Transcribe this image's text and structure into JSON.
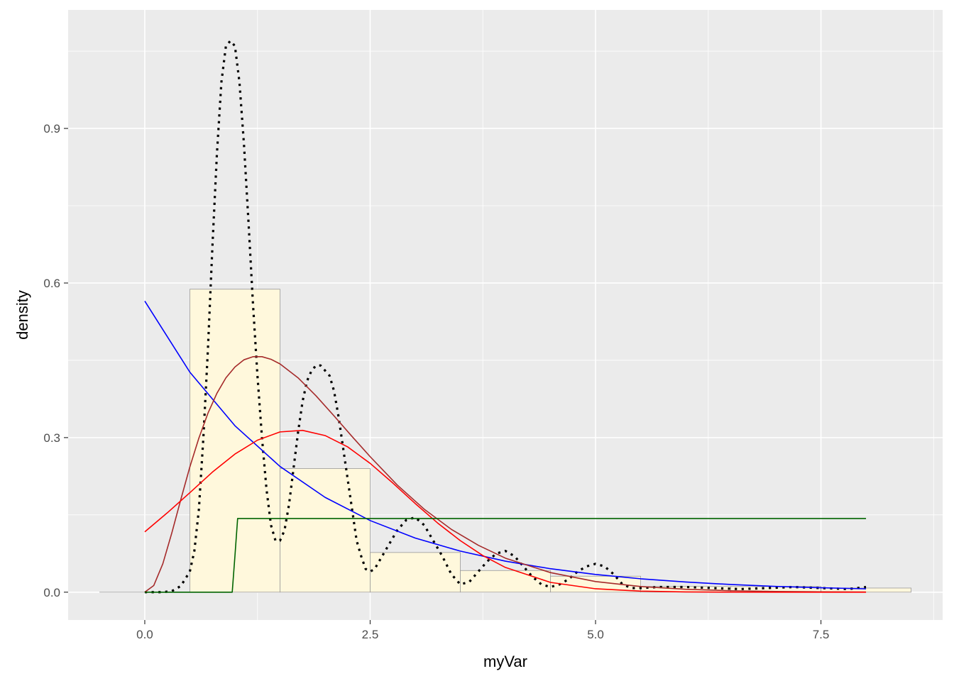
{
  "chart_data": {
    "type": "histogram-density",
    "xlabel": "myVar",
    "ylabel": "density",
    "xlim": [
      -0.85,
      8.85
    ],
    "ylim": [
      -0.054,
      1.13
    ],
    "x_ticks": [
      0.0,
      2.5,
      5.0,
      7.5
    ],
    "x_tick_labels": [
      "0.0",
      "2.5",
      "5.0",
      "7.5"
    ],
    "y_ticks": [
      0.0,
      0.3,
      0.6,
      0.9
    ],
    "y_tick_labels": [
      "0.0",
      "0.3",
      "0.6",
      "0.9"
    ],
    "grid": true,
    "panel_background": "#ebebeb",
    "histogram": {
      "fill": "#fff8dc",
      "stroke": "#999999",
      "bins": [
        {
          "x0": -0.5,
          "x1": 0.5,
          "density": 0.0
        },
        {
          "x0": 0.5,
          "x1": 1.5,
          "density": 0.588
        },
        {
          "x0": 1.5,
          "x1": 2.5,
          "density": 0.24
        },
        {
          "x0": 2.5,
          "x1": 3.5,
          "density": 0.077
        },
        {
          "x0": 3.5,
          "x1": 4.5,
          "density": 0.042
        },
        {
          "x0": 4.5,
          "x1": 5.5,
          "density": 0.031
        },
        {
          "x0": 5.5,
          "x1": 6.5,
          "density": 0.011
        },
        {
          "x0": 6.5,
          "x1": 7.5,
          "density": 0.011
        },
        {
          "x0": 7.5,
          "x1": 8.5,
          "density": 0.008
        }
      ]
    },
    "series": [
      {
        "style": "dotted",
        "color": "#000000",
        "x": [
          0.0,
          0.2,
          0.3,
          0.4,
          0.5,
          0.55,
          0.6,
          0.65,
          0.7,
          0.75,
          0.8,
          0.85,
          0.9,
          0.95,
          1.0,
          1.05,
          1.1,
          1.15,
          1.2,
          1.25,
          1.3,
          1.35,
          1.4,
          1.45,
          1.5,
          1.55,
          1.6,
          1.65,
          1.7,
          1.75,
          1.8,
          1.85,
          1.9,
          1.95,
          2.0,
          2.05,
          2.1,
          2.15,
          2.2,
          2.25,
          2.3,
          2.35,
          2.4,
          2.45,
          2.5,
          2.55,
          2.6,
          2.7,
          2.8,
          2.9,
          3.0,
          3.1,
          3.2,
          3.3,
          3.4,
          3.5,
          3.6,
          3.7,
          3.8,
          3.9,
          4.0,
          4.1,
          4.2,
          4.3,
          4.4,
          4.5,
          4.6,
          4.7,
          4.8,
          4.9,
          5.0,
          5.1,
          5.2,
          5.3,
          5.4,
          5.5,
          5.7,
          6.0,
          6.3,
          6.6,
          6.9,
          7.2,
          7.5,
          7.8,
          8.0
        ],
        "y": [
          0.0,
          0.0,
          0.002,
          0.012,
          0.04,
          0.08,
          0.16,
          0.3,
          0.47,
          0.67,
          0.85,
          0.99,
          1.06,
          1.07,
          1.06,
          0.99,
          0.87,
          0.72,
          0.56,
          0.42,
          0.3,
          0.2,
          0.13,
          0.1,
          0.1,
          0.12,
          0.17,
          0.24,
          0.31,
          0.37,
          0.41,
          0.43,
          0.44,
          0.44,
          0.43,
          0.42,
          0.39,
          0.34,
          0.28,
          0.22,
          0.16,
          0.1,
          0.07,
          0.045,
          0.04,
          0.045,
          0.06,
          0.09,
          0.12,
          0.14,
          0.145,
          0.13,
          0.1,
          0.07,
          0.035,
          0.015,
          0.02,
          0.04,
          0.06,
          0.075,
          0.08,
          0.07,
          0.05,
          0.03,
          0.015,
          0.01,
          0.015,
          0.025,
          0.04,
          0.05,
          0.055,
          0.05,
          0.035,
          0.015,
          0.008,
          0.008,
          0.01,
          0.01,
          0.008,
          0.006,
          0.008,
          0.01,
          0.008,
          0.006,
          0.01
        ]
      },
      {
        "style": "solid",
        "color": "#0000ff",
        "x": [
          0.0,
          0.5,
          1.0,
          1.5,
          2.0,
          2.5,
          3.0,
          3.5,
          4.0,
          4.5,
          5.0,
          5.5,
          6.0,
          6.5,
          7.0,
          7.5,
          8.0
        ],
        "y": [
          0.565,
          0.427,
          0.323,
          0.244,
          0.184,
          0.139,
          0.105,
          0.0797,
          0.0602,
          0.0455,
          0.0344,
          0.026,
          0.0197,
          0.0149,
          0.0112,
          0.0085,
          0.0064
        ]
      },
      {
        "style": "solid",
        "color": "#a52a2a",
        "x": [
          0.0,
          0.1,
          0.2,
          0.3,
          0.4,
          0.5,
          0.6,
          0.7,
          0.8,
          0.9,
          1.0,
          1.1,
          1.2,
          1.3,
          1.4,
          1.5,
          1.7,
          1.9,
          2.1,
          2.3,
          2.5,
          2.8,
          3.1,
          3.4,
          3.7,
          4.0,
          4.5,
          5.0,
          5.5,
          6.0,
          6.5,
          7.0,
          7.5,
          8.0
        ],
        "y": [
          0.0,
          0.013,
          0.055,
          0.115,
          0.18,
          0.243,
          0.299,
          0.347,
          0.386,
          0.416,
          0.437,
          0.451,
          0.457,
          0.457,
          0.452,
          0.443,
          0.416,
          0.381,
          0.342,
          0.302,
          0.263,
          0.208,
          0.161,
          0.122,
          0.091,
          0.066,
          0.038,
          0.0206,
          0.011,
          0.0056,
          0.0028,
          0.0014,
          0.0007,
          0.0003
        ]
      },
      {
        "style": "solid",
        "color": "#ff0000",
        "x": [
          0.0,
          0.25,
          0.5,
          0.75,
          1.0,
          1.25,
          1.5,
          1.75,
          2.0,
          2.25,
          2.5,
          2.75,
          3.0,
          3.25,
          3.5,
          3.75,
          4.0,
          4.5,
          5.0,
          5.5,
          6.0,
          6.5,
          7.0,
          7.5,
          8.0
        ],
        "y": [
          0.117,
          0.154,
          0.193,
          0.233,
          0.268,
          0.295,
          0.311,
          0.314,
          0.304,
          0.282,
          0.25,
          0.212,
          0.172,
          0.134,
          0.1,
          0.071,
          0.048,
          0.019,
          0.0066,
          0.002,
          0.0005,
          0.0001,
          0.0,
          0.0,
          0.0
        ]
      },
      {
        "style": "solid",
        "color": "#006400",
        "x": [
          0.0,
          0.97,
          1.0,
          1.03,
          8.0
        ],
        "y": [
          0.0,
          0.0,
          0.07,
          0.143,
          0.143
        ]
      }
    ]
  }
}
